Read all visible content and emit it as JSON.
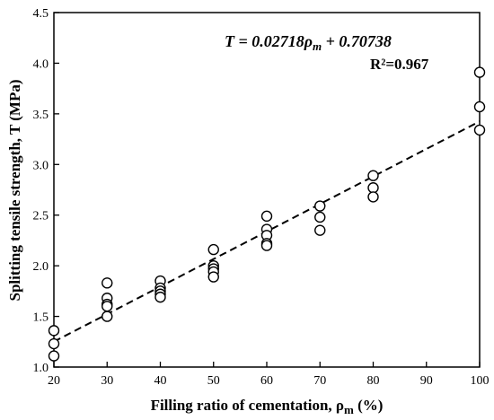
{
  "chart_data": {
    "type": "scatter",
    "xlabel": "Filling ratio of cementation, ρm (%)",
    "ylabel": "Splitting tensile strength, T (MPa)",
    "xlim": [
      20,
      100
    ],
    "ylim": [
      1.0,
      4.5
    ],
    "xticks": [
      "20",
      "30",
      "40",
      "50",
      "60",
      "70",
      "80",
      "90",
      "100"
    ],
    "yticks": [
      "1.0",
      "1.5",
      "2.0",
      "2.5",
      "3.0",
      "3.5",
      "4.0",
      "4.5"
    ],
    "grid": false,
    "points": [
      {
        "x": 20,
        "y": 1.36
      },
      {
        "x": 20,
        "y": 1.23
      },
      {
        "x": 20,
        "y": 1.11
      },
      {
        "x": 30,
        "y": 1.83
      },
      {
        "x": 30,
        "y": 1.68
      },
      {
        "x": 30,
        "y": 1.62
      },
      {
        "x": 30,
        "y": 1.6
      },
      {
        "x": 30,
        "y": 1.5
      },
      {
        "x": 40,
        "y": 1.85
      },
      {
        "x": 40,
        "y": 1.78
      },
      {
        "x": 40,
        "y": 1.75
      },
      {
        "x": 40,
        "y": 1.72
      },
      {
        "x": 40,
        "y": 1.69
      },
      {
        "x": 50,
        "y": 2.16
      },
      {
        "x": 50,
        "y": 2.0
      },
      {
        "x": 50,
        "y": 1.97
      },
      {
        "x": 50,
        "y": 1.94
      },
      {
        "x": 50,
        "y": 1.89
      },
      {
        "x": 60,
        "y": 2.49
      },
      {
        "x": 60,
        "y": 2.36
      },
      {
        "x": 60,
        "y": 2.3
      },
      {
        "x": 60,
        "y": 2.22
      },
      {
        "x": 60,
        "y": 2.2
      },
      {
        "x": 70,
        "y": 2.59
      },
      {
        "x": 70,
        "y": 2.48
      },
      {
        "x": 70,
        "y": 2.35
      },
      {
        "x": 80,
        "y": 2.89
      },
      {
        "x": 80,
        "y": 2.77
      },
      {
        "x": 80,
        "y": 2.68
      },
      {
        "x": 100,
        "y": 3.91
      },
      {
        "x": 100,
        "y": 3.57
      },
      {
        "x": 100,
        "y": 3.34
      }
    ],
    "fit": {
      "slope": 0.02718,
      "intercept": 0.70738,
      "x_range": [
        20,
        100
      ],
      "style": "dashed"
    },
    "equation": "T = 0.02718ρm + 0.70738",
    "r_squared": "R²=0.967"
  }
}
